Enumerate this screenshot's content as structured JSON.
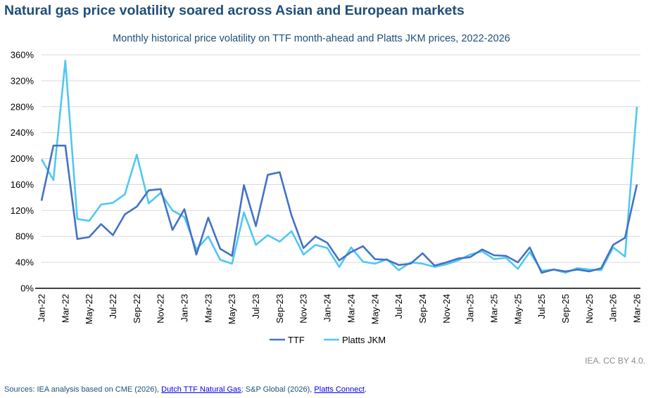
{
  "title": "Natural gas price volatility soared across Asian and European markets",
  "credit": "IEA. CC BY 4.0.",
  "sources": {
    "prefix": "Sources: IEA analysis based on CME (2026), ",
    "link1": "Dutch TTF Natural Gas",
    "middle": "; S&P Global (2026), ",
    "link2": "Platts Connect",
    "suffix": "."
  },
  "chart_data": {
    "type": "line",
    "title": "Monthly historical price volatility on TTF month-ahead and Platts JKM prices, 2022-2026",
    "xlabel": "",
    "ylabel": "",
    "ylim": [
      0,
      360
    ],
    "yticks": [
      "0%",
      "40%",
      "80%",
      "120%",
      "160%",
      "200%",
      "240%",
      "280%",
      "320%",
      "360%"
    ],
    "grid": true,
    "legend_position": "bottom",
    "x": [
      "Jan-22",
      "Feb-22",
      "Mar-22",
      "Apr-22",
      "May-22",
      "Jun-22",
      "Jul-22",
      "Aug-22",
      "Sep-22",
      "Oct-22",
      "Nov-22",
      "Dec-22",
      "Jan-23",
      "Feb-23",
      "Mar-23",
      "Apr-23",
      "May-23",
      "Jun-23",
      "Jul-23",
      "Aug-23",
      "Sep-23",
      "Oct-23",
      "Nov-23",
      "Dec-23",
      "Jan-24",
      "Feb-24",
      "Mar-24",
      "Apr-24",
      "May-24",
      "Jun-24",
      "Jul-24",
      "Aug-24",
      "Sep-24",
      "Oct-24",
      "Nov-24",
      "Dec-24",
      "Jan-25",
      "Feb-25",
      "Mar-25",
      "Apr-25",
      "May-25",
      "Jun-25",
      "Jul-25",
      "Aug-25",
      "Sep-25",
      "Oct-25",
      "Nov-25",
      "Dec-25",
      "Jan-26",
      "Feb-26",
      "Mar-26"
    ],
    "series": [
      {
        "name": "TTF",
        "color": "#4472c4",
        "values": [
          135,
          220,
          220,
          76,
          79,
          99,
          82,
          114,
          126,
          151,
          153,
          90,
          122,
          52,
          109,
          61,
          50,
          159,
          96,
          175,
          179,
          112,
          62,
          80,
          70,
          43,
          56,
          65,
          45,
          44,
          36,
          38,
          54,
          35,
          40,
          46,
          48,
          60,
          51,
          50,
          40,
          63,
          24,
          29,
          26,
          29,
          26,
          31,
          67,
          78,
          160
        ]
      },
      {
        "name": "Platts JKM",
        "color": "#4fc8f0",
        "values": [
          199,
          167,
          351,
          107,
          104,
          129,
          132,
          145,
          206,
          131,
          147,
          120,
          110,
          60,
          80,
          44,
          38,
          117,
          67,
          82,
          72,
          88,
          52,
          67,
          62,
          33,
          63,
          41,
          38,
          45,
          28,
          40,
          38,
          33,
          37,
          43,
          52,
          57,
          45,
          47,
          30,
          56,
          27,
          29,
          24,
          31,
          29,
          28,
          63,
          49,
          280
        ]
      }
    ]
  }
}
